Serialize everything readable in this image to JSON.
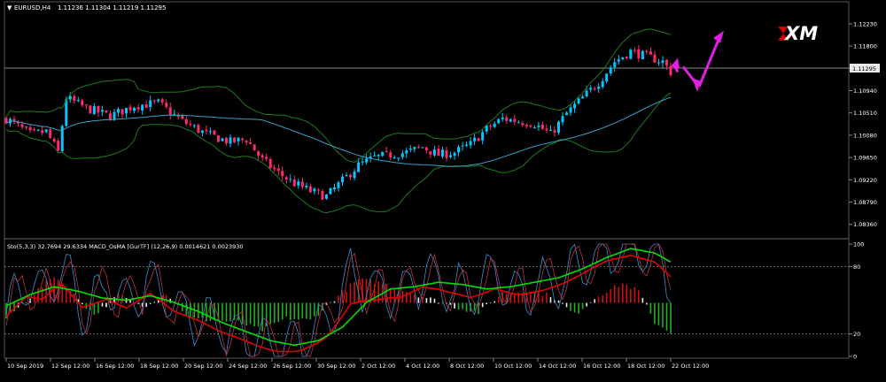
{
  "header": {
    "arrow_glyph": "▼",
    "symbol": "EURUSD,H4",
    "ohlc": "1.11236 1.11304 1.11219 1.11295"
  },
  "logo": {
    "text": "XM"
  },
  "indicator": {
    "label": "Sto(5,3,3) 32.7694 29.6334   MACD_OsMA [GurTF] (12,26,9) 0.0014621 0.0023930"
  },
  "price_axis": {
    "ticks": [
      "1.12230",
      "1.11800",
      "1.11370",
      "1.10940",
      "1.10510",
      "1.10080",
      "1.09650",
      "1.09220",
      "1.08790",
      "1.08360"
    ],
    "current_price": "1.11295"
  },
  "osc_axis": {
    "ticks": [
      "100",
      "80",
      "20",
      "0"
    ]
  },
  "time_axis": {
    "labels": [
      "10 Sep 2019",
      "12 Sep 12:00",
      "16 Sep 12:00",
      "18 Sep 12:00",
      "20 Sep 12:00",
      "24 Sep 12:00",
      "26 Sep 12:00",
      "30 Sep 12:00",
      "2 Oct 12:00",
      "4 Oct 12:00",
      "8 Oct 12:00",
      "10 Oct 12:00",
      "14 Oct 12:00",
      "16 Oct 12:00",
      "18 Oct 12:00",
      "22 Oct 12:00"
    ]
  },
  "colors": {
    "bull": "#00c8ff",
    "bear": "#ff2a6a",
    "bollinger": "#1f7a1f",
    "ma": "#3aa0c8",
    "arrow": "#e020e0",
    "stoch_main": "#e00000",
    "stoch_signal": "#00e000",
    "macd_pos": "#d01010",
    "macd_neg": "#20b020",
    "macd_mid": "#f0f0f0",
    "grid": "#6a6a6a"
  },
  "chart_data": [
    {
      "type": "candlestick",
      "title": "EURUSD,H4",
      "ylim": [
        1.0815,
        1.1245
      ],
      "last_price": 1.11295,
      "anchors": [
        [
          0,
          1.104
        ],
        [
          6,
          1.101
        ],
        [
          10,
          1.1015
        ],
        [
          13,
          1.0975
        ],
        [
          15,
          1.108
        ],
        [
          20,
          1.106
        ],
        [
          26,
          1.1045
        ],
        [
          32,
          1.1065
        ],
        [
          38,
          1.107
        ],
        [
          44,
          1.1035
        ],
        [
          50,
          1.101
        ],
        [
          56,
          1.0995
        ],
        [
          60,
          1.1
        ],
        [
          64,
          1.096
        ],
        [
          68,
          1.0935
        ],
        [
          72,
          1.0915
        ],
        [
          76,
          1.09
        ],
        [
          80,
          1.089
        ],
        [
          84,
          1.092
        ],
        [
          88,
          1.095
        ],
        [
          92,
          1.0965
        ],
        [
          96,
          1.097
        ],
        [
          100,
          1.0975
        ],
        [
          104,
          1.0985
        ],
        [
          108,
          1.097
        ],
        [
          112,
          1.0975
        ],
        [
          116,
          1.099
        ],
        [
          120,
          1.102
        ],
        [
          124,
          1.104
        ],
        [
          128,
          1.1035
        ],
        [
          132,
          1.103
        ],
        [
          136,
          1.101
        ],
        [
          140,
          1.105
        ],
        [
          144,
          1.108
        ],
        [
          148,
          1.111
        ],
        [
          152,
          1.115
        ],
        [
          156,
          1.117
        ],
        [
          160,
          1.116
        ],
        [
          164,
          1.115
        ],
        [
          166,
          1.113
        ]
      ],
      "forecast_path": [
        [
          1.113,
          1.114
        ],
        [
          1.1095,
          1.1165
        ]
      ]
    },
    {
      "type": "line+histogram",
      "title": "Sto(5,3,3) / MACD_OsMA",
      "ylim": [
        0,
        100
      ],
      "levels": [
        80,
        20
      ],
      "stochastic_anchors": [
        [
          0,
          38
        ],
        [
          5,
          65
        ],
        [
          9,
          55
        ],
        [
          14,
          80
        ],
        [
          19,
          42
        ],
        [
          25,
          62
        ],
        [
          30,
          48
        ],
        [
          36,
          70
        ],
        [
          42,
          44
        ],
        [
          48,
          36
        ],
        [
          53,
          26
        ],
        [
          58,
          20
        ],
        [
          63,
          12
        ],
        [
          68,
          8
        ],
        [
          74,
          12
        ],
        [
          80,
          28
        ],
        [
          86,
          72
        ],
        [
          92,
          60
        ],
        [
          98,
          55
        ],
        [
          104,
          72
        ],
        [
          110,
          62
        ],
        [
          116,
          54
        ],
        [
          122,
          72
        ],
        [
          128,
          58
        ],
        [
          134,
          62
        ],
        [
          140,
          72
        ],
        [
          146,
          86
        ],
        [
          150,
          94
        ],
        [
          156,
          96
        ],
        [
          162,
          88
        ],
        [
          166,
          70
        ]
      ],
      "signal_anchors": [
        [
          0,
          45
        ],
        [
          6,
          55
        ],
        [
          12,
          62
        ],
        [
          18,
          58
        ],
        [
          24,
          52
        ],
        [
          30,
          50
        ],
        [
          36,
          54
        ],
        [
          42,
          48
        ],
        [
          48,
          40
        ],
        [
          54,
          30
        ],
        [
          60,
          22
        ],
        [
          66,
          14
        ],
        [
          72,
          10
        ],
        [
          78,
          14
        ],
        [
          84,
          26
        ],
        [
          90,
          48
        ],
        [
          96,
          60
        ],
        [
          102,
          62
        ],
        [
          108,
          66
        ],
        [
          114,
          64
        ],
        [
          120,
          60
        ],
        [
          126,
          62
        ],
        [
          132,
          66
        ],
        [
          138,
          70
        ],
        [
          144,
          78
        ],
        [
          150,
          88
        ],
        [
          156,
          96
        ],
        [
          162,
          92
        ],
        [
          166,
          84
        ]
      ],
      "macd_anchors": [
        [
          0,
          -0.8
        ],
        [
          6,
          0.3
        ],
        [
          12,
          1.4
        ],
        [
          16,
          0.6
        ],
        [
          22,
          -0.6
        ],
        [
          28,
          0.4
        ],
        [
          34,
          -0.2
        ],
        [
          40,
          0.5
        ],
        [
          46,
          -0.8
        ],
        [
          52,
          -0.9
        ],
        [
          58,
          -1.0
        ],
        [
          64,
          -1.4
        ],
        [
          70,
          -0.8
        ],
        [
          76,
          -0.9
        ],
        [
          82,
          0.2
        ],
        [
          88,
          1.2
        ],
        [
          94,
          1.0
        ],
        [
          100,
          0.6
        ],
        [
          106,
          0.2
        ],
        [
          112,
          -0.2
        ],
        [
          118,
          -0.5
        ],
        [
          124,
          0.5
        ],
        [
          130,
          0.6
        ],
        [
          136,
          0.4
        ],
        [
          142,
          -0.6
        ],
        [
          148,
          0.4
        ],
        [
          154,
          1.0
        ],
        [
          158,
          0.6
        ],
        [
          162,
          -1.0
        ],
        [
          166,
          -1.5
        ]
      ]
    }
  ]
}
